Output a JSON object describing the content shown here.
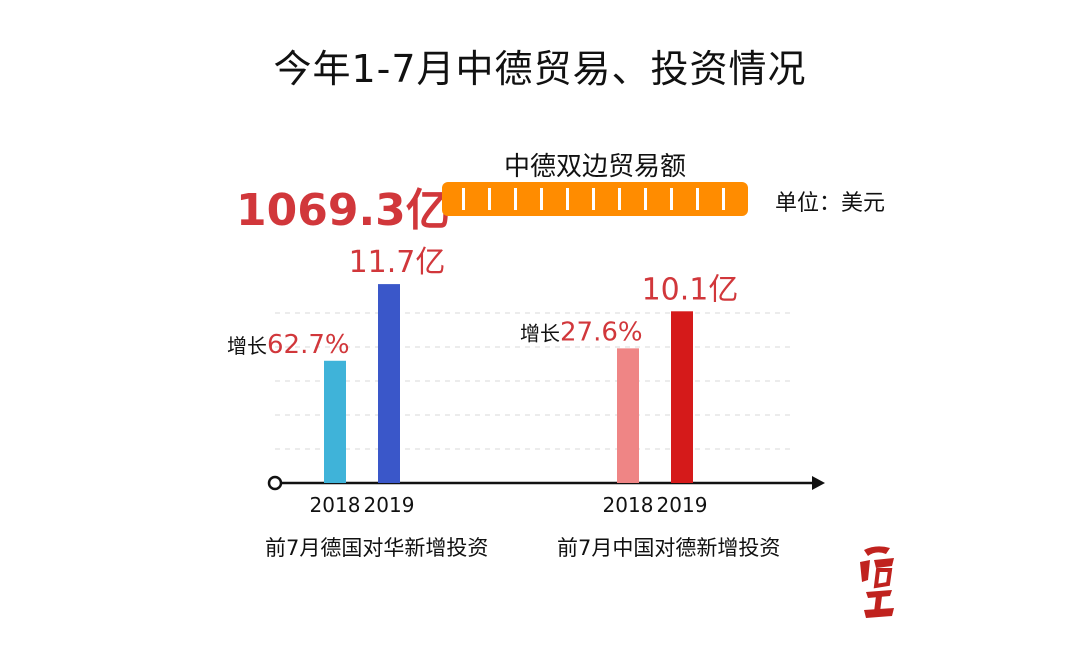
{
  "title": "今年1-7月中德贸易、投资情况",
  "trade": {
    "label": "中德双边贸易额",
    "value": "1069.3亿",
    "unit": "单位：美元"
  },
  "colors": {
    "germany_2018": "#3fb3d9",
    "germany_2019": "#3a57c9",
    "china_2018": "#ef8585",
    "china_2019": "#d51a1a",
    "trade_bar": "#ff8c00",
    "accent_red": "#d1373b"
  },
  "chart_data": {
    "type": "bar",
    "groups": [
      {
        "name": "前7月德国对华新增投资",
        "categories": [
          "2018",
          "2019"
        ],
        "values": [
          7.19,
          11.7
        ],
        "value_label": "11.7亿",
        "growth_prefix": "增长",
        "growth": "62.7%"
      },
      {
        "name": "前7月中国对德新增投资",
        "categories": [
          "2018",
          "2019"
        ],
        "values": [
          7.92,
          10.1
        ],
        "value_label": "10.1亿",
        "growth_prefix": "增长",
        "growth": "27.6%"
      }
    ],
    "ylim": [
      0,
      14
    ],
    "grid": true
  }
}
